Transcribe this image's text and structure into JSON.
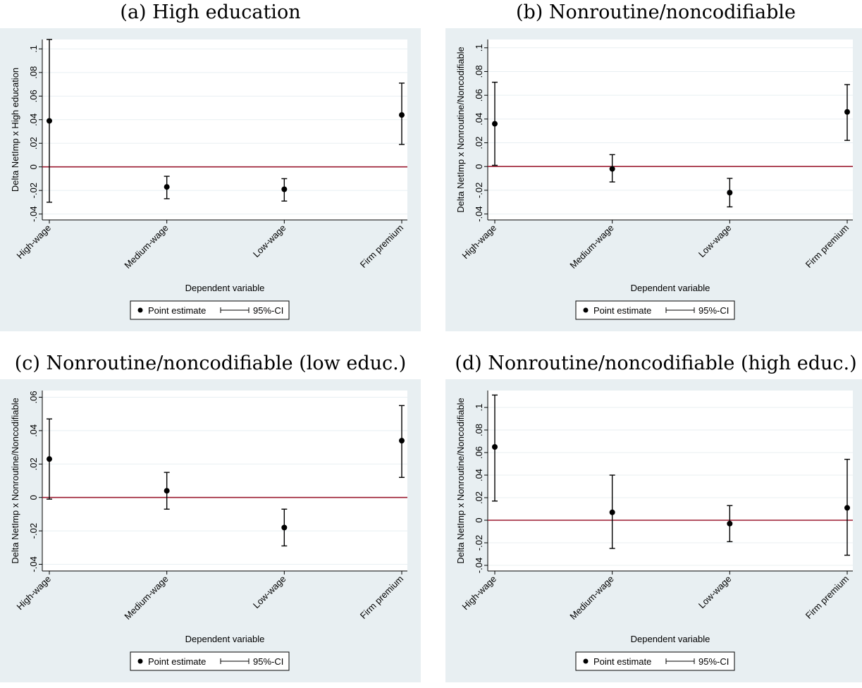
{
  "chart_data": [
    {
      "type": "scatter",
      "title": "(a) High education",
      "xlabel": "Dependent variable",
      "ylabel": "Delta NetImp x High education",
      "categories": [
        "High-wage",
        "Medium-wage",
        "Low-wage",
        "Firm premium"
      ],
      "yticks": [
        -0.04,
        -0.02,
        0,
        0.02,
        0.04,
        0.06,
        0.08,
        0.1
      ],
      "ytick_labels": [
        "-.04",
        "-.02",
        "0",
        ".02",
        ".04",
        ".06",
        ".08",
        ".1"
      ],
      "ylim": [
        -0.045,
        0.108
      ],
      "reference_line": 0,
      "series": [
        {
          "name": "Point estimate",
          "values": [
            0.039,
            -0.017,
            -0.019,
            0.044
          ]
        },
        {
          "name": "95%-CI",
          "lower": [
            -0.03,
            -0.027,
            -0.029,
            0.019
          ],
          "upper": [
            0.108,
            -0.008,
            -0.01,
            0.071
          ]
        }
      ],
      "legend": [
        "Point estimate",
        "95%-CI"
      ],
      "legend_position": "bottom",
      "grid": true
    },
    {
      "type": "scatter",
      "title": "(b) Nonroutine/noncodifiable",
      "xlabel": "Dependent variable",
      "ylabel": "Delta NetImp x Nonroutine/Noncodifiable",
      "categories": [
        "High-wage",
        "Medium-wage",
        "Low-wage",
        "Firm premium"
      ],
      "yticks": [
        -0.04,
        -0.02,
        0,
        0.02,
        0.04,
        0.06,
        0.08,
        0.1
      ],
      "ytick_labels": [
        "-.04",
        "-.02",
        "0",
        ".02",
        ".04",
        ".06",
        ".08",
        ".1"
      ],
      "ylim": [
        -0.045,
        0.107
      ],
      "reference_line": 0,
      "series": [
        {
          "name": "Point estimate",
          "values": [
            0.036,
            -0.002,
            -0.022,
            0.046
          ]
        },
        {
          "name": "95%-CI",
          "lower": [
            0.001,
            -0.013,
            -0.034,
            0.022
          ],
          "upper": [
            0.071,
            0.01,
            -0.01,
            0.069
          ]
        }
      ],
      "legend": [
        "Point estimate",
        "95%-CI"
      ],
      "legend_position": "bottom",
      "grid": true
    },
    {
      "type": "scatter",
      "title": "(c) Nonroutine/noncodifiable (low educ.)",
      "xlabel": "Dependent variable",
      "ylabel": "Delta NetImp x Nonroutine/Noncodifiable",
      "categories": [
        "High-wage",
        "Medium-wage",
        "Low-wage",
        "Firm premium"
      ],
      "yticks": [
        -0.04,
        -0.02,
        0,
        0.02,
        0.04,
        0.06
      ],
      "ytick_labels": [
        "-.04",
        "-.02",
        "0",
        ".02",
        ".04",
        ".06"
      ],
      "ylim": [
        -0.044,
        0.064
      ],
      "reference_line": 0,
      "series": [
        {
          "name": "Point estimate",
          "values": [
            0.023,
            0.004,
            -0.018,
            0.034
          ]
        },
        {
          "name": "95%-CI",
          "lower": [
            -0.001,
            -0.007,
            -0.029,
            0.012
          ],
          "upper": [
            0.047,
            0.015,
            -0.007,
            0.055
          ]
        }
      ],
      "legend": [
        "Point estimate",
        "95%-CI"
      ],
      "legend_position": "bottom",
      "grid": true
    },
    {
      "type": "scatter",
      "title": "(d) Nonroutine/noncodifiable (high educ.)",
      "xlabel": "Dependent variable",
      "ylabel": "Delta NetImp x Nonroutine/Noncodifiable",
      "categories": [
        "High-wage",
        "Medium-wage",
        "Low-wage",
        "Firm premium"
      ],
      "yticks": [
        -0.04,
        -0.02,
        0,
        0.02,
        0.04,
        0.06,
        0.08,
        0.1
      ],
      "ytick_labels": [
        "-.04",
        "-.02",
        "0",
        ".02",
        ".04",
        ".06",
        ".08",
        ".1"
      ],
      "ylim": [
        -0.045,
        0.115
      ],
      "reference_line": 0,
      "series": [
        {
          "name": "Point estimate",
          "values": [
            0.065,
            0.007,
            -0.003,
            0.011
          ]
        },
        {
          "name": "95%-CI",
          "lower": [
            0.017,
            -0.025,
            -0.019,
            -0.031
          ],
          "upper": [
            0.111,
            0.04,
            0.013,
            0.054
          ]
        }
      ],
      "legend": [
        "Point estimate",
        "95%-CI"
      ],
      "legend_position": "bottom",
      "grid": true
    }
  ],
  "colors": {
    "panel_background": "#e8eff2",
    "plot_background": "#ffffff",
    "reference_line": "#9b1b30",
    "marker": "#000000"
  }
}
